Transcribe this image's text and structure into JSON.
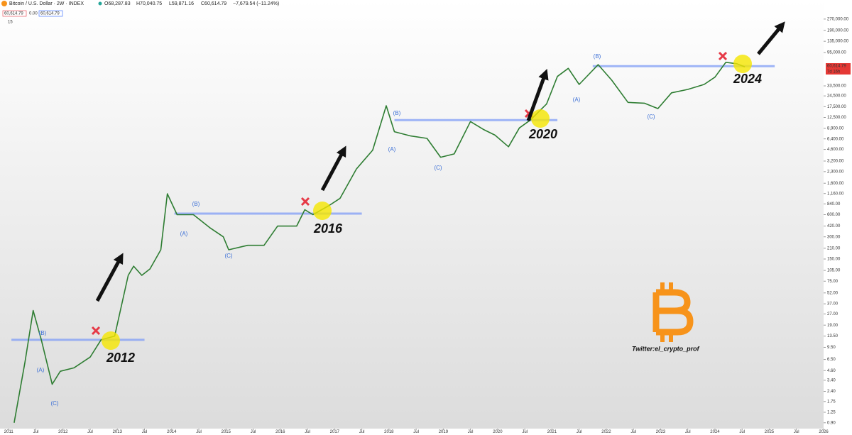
{
  "header": {
    "symbol": "Bitcoin / U.S. Dollar · 2W · INDEX",
    "open": "O68,287.83",
    "high": "H70,040.75",
    "low": "L59,871.16",
    "close": "C60,614.79",
    "change": "−7,679.54 (−11.24%)",
    "box1": "60,614.79",
    "box2": "0.00",
    "box3": "60,614.79",
    "indicator_count": "15",
    "price_tag": "60,614.79",
    "countdown": "7d 16h"
  },
  "chart_data": {
    "type": "line",
    "log_scale": true,
    "grid": false,
    "color": "#2e7d32",
    "x": [
      2011.1,
      2011.3,
      2011.45,
      2011.6,
      2011.8,
      2011.95,
      2012.2,
      2012.5,
      2012.7,
      2012.95,
      2013.2,
      2013.3,
      2013.45,
      2013.6,
      2013.8,
      2013.92,
      2014.1,
      2014.4,
      2014.7,
      2014.95,
      2015.05,
      2015.4,
      2015.7,
      2015.95,
      2016.3,
      2016.45,
      2016.6,
      2016.9,
      2017.1,
      2017.4,
      2017.7,
      2017.95,
      2018.1,
      2018.4,
      2018.7,
      2018.95,
      2019.2,
      2019.5,
      2019.75,
      2019.95,
      2020.2,
      2020.4,
      2020.6,
      2020.9,
      2021.1,
      2021.3,
      2021.5,
      2021.85,
      2022.1,
      2022.4,
      2022.7,
      2022.95,
      2023.2,
      2023.5,
      2023.8,
      2024.0,
      2024.2,
      2024.4,
      2024.55
    ],
    "values": [
      0.9,
      6,
      30,
      12,
      3,
      4.5,
      5,
      7,
      12,
      13.5,
      90,
      120,
      90,
      110,
      200,
      1150,
      600,
      600,
      400,
      300,
      200,
      230,
      230,
      420,
      420,
      700,
      600,
      800,
      1000,
      2500,
      4500,
      18000,
      8000,
      7000,
      6500,
      3600,
      4000,
      11000,
      8500,
      7200,
      5000,
      9000,
      11500,
      19000,
      45000,
      58000,
      35000,
      65000,
      40000,
      20000,
      19500,
      16500,
      27000,
      30000,
      35000,
      44000,
      70000,
      67000,
      60614.79
    ],
    "xlim": [
      2010.84,
      2026.0
    ],
    "xticks": [
      {
        "value": 2011,
        "label": "2011"
      },
      {
        "value": 2011.5,
        "label": "Jul"
      },
      {
        "value": 2012,
        "label": "2012"
      },
      {
        "value": 2012.5,
        "label": "Jul"
      },
      {
        "value": 2013,
        "label": "2013"
      },
      {
        "value": 2013.5,
        "label": "Jul"
      },
      {
        "value": 2014,
        "label": "2014"
      },
      {
        "value": 2014.5,
        "label": "Jul"
      },
      {
        "value": 2015,
        "label": "2015"
      },
      {
        "value": 2015.5,
        "label": "Jul"
      },
      {
        "value": 2016,
        "label": "2016"
      },
      {
        "value": 2016.5,
        "label": "Jul"
      },
      {
        "value": 2017,
        "label": "2017"
      },
      {
        "value": 2017.5,
        "label": "Jul"
      },
      {
        "value": 2018,
        "label": "2018"
      },
      {
        "value": 2018.5,
        "label": "Jul"
      },
      {
        "value": 2019,
        "label": "2019"
      },
      {
        "value": 2019.5,
        "label": "Jul"
      },
      {
        "value": 2020,
        "label": "2020"
      },
      {
        "value": 2020.5,
        "label": "Jul"
      },
      {
        "value": 2021,
        "label": "2021"
      },
      {
        "value": 2021.5,
        "label": "Jul"
      },
      {
        "value": 2022,
        "label": "2022"
      },
      {
        "value": 2022.5,
        "label": "Jul"
      },
      {
        "value": 2023,
        "label": "2023"
      },
      {
        "value": 2023.5,
        "label": "Jul"
      },
      {
        "value": 2024,
        "label": "2024"
      },
      {
        "value": 2024.5,
        "label": "Jul"
      },
      {
        "value": 2025,
        "label": "2025"
      },
      {
        "value": 2025.5,
        "label": "Jul"
      },
      {
        "value": 2026,
        "label": "2026"
      }
    ],
    "ylim": [
      0.75,
      490000
    ],
    "yticks": [
      {
        "value": 270000,
        "label": "270,000.00"
      },
      {
        "value": 190000,
        "label": "190,000.00"
      },
      {
        "value": 135000,
        "label": "135,000.00"
      },
      {
        "value": 95000,
        "label": "95,000.00"
      },
      {
        "value": 33500,
        "label": "33,500.00"
      },
      {
        "value": 24500,
        "label": "24,500.00"
      },
      {
        "value": 17500,
        "label": "17,500.00"
      },
      {
        "value": 12500,
        "label": "12,500.00"
      },
      {
        "value": 8900,
        "label": "8,900.00"
      },
      {
        "value": 6400,
        "label": "6,400.00"
      },
      {
        "value": 4600,
        "label": "4,600.00"
      },
      {
        "value": 3200,
        "label": "3,200.00"
      },
      {
        "value": 2300,
        "label": "2,300.00"
      },
      {
        "value": 1600,
        "label": "1,600.00"
      },
      {
        "value": 1160,
        "label": "1,160.00"
      },
      {
        "value": 840,
        "label": "840.00"
      },
      {
        "value": 600,
        "label": "600.00"
      },
      {
        "value": 420,
        "label": "420.00"
      },
      {
        "value": 300,
        "label": "300.00"
      },
      {
        "value": 210,
        "label": "210.00"
      },
      {
        "value": 150,
        "label": "150.00"
      },
      {
        "value": 105,
        "label": "105.00"
      },
      {
        "value": 75,
        "label": "75.00"
      },
      {
        "value": 52,
        "label": "52.00"
      },
      {
        "value": 37,
        "label": "37.00"
      },
      {
        "value": 27,
        "label": "27.00"
      },
      {
        "value": 19,
        "label": "19.00"
      },
      {
        "value": 13.5,
        "label": "13.50"
      },
      {
        "value": 9.5,
        "label": "9.50"
      },
      {
        "value": 6.5,
        "label": "6.50"
      },
      {
        "value": 4.6,
        "label": "4.60"
      },
      {
        "value": 3.4,
        "label": "3.40"
      },
      {
        "value": 2.4,
        "label": "2.40"
      },
      {
        "value": 1.75,
        "label": "1.75"
      },
      {
        "value": 1.25,
        "label": "1.25"
      },
      {
        "value": 0.9,
        "label": "0.90"
      }
    ],
    "levels": [
      {
        "value": 12,
        "from": 2011.05,
        "to": 2013.5
      },
      {
        "value": 620,
        "from": 2014.05,
        "to": 2017.5
      },
      {
        "value": 11500,
        "from": 2018.1,
        "to": 2021.1
      },
      {
        "value": 62000,
        "from": 2021.75,
        "to": 2025.1
      }
    ],
    "annotations": [
      "2012",
      "2016",
      "2020",
      "2024",
      "(B)",
      "(A)",
      "(C)",
      "(B)",
      "(A)",
      "(C)",
      "(B)",
      "(A)",
      "(C)",
      "(B)",
      "(A)",
      "(C)"
    ],
    "watermark": "Twitter:el_crypto_prof"
  }
}
